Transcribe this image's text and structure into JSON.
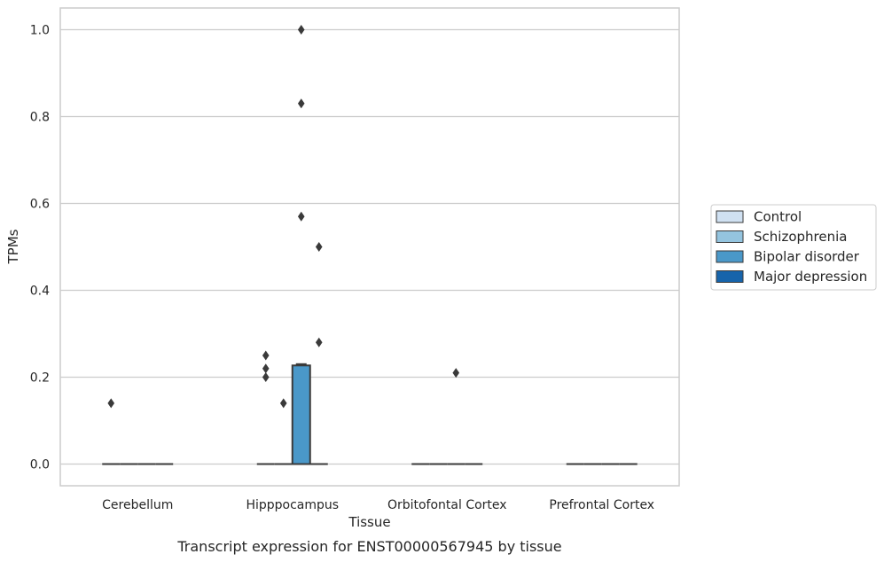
{
  "caption": "Transcript expression for ENST00000567945 by tissue",
  "colors": {
    "control": "#d0e1f2",
    "schizophrenia": "#94c4df",
    "bipolar": "#4a98c9",
    "depression": "#1764ab",
    "grid": "#cccccc",
    "edge": "#3a3a3a"
  },
  "chart_data": {
    "type": "box",
    "xlabel": "Tissue",
    "ylabel": "TPMs",
    "ylim": [
      -0.05,
      1.05
    ],
    "yticks": [
      0.0,
      0.2,
      0.4,
      0.6,
      0.8,
      1.0
    ],
    "grid": true,
    "legend_position": "right",
    "categories": [
      "Cerebellum",
      "Hipppocampus",
      "Orbitofontal Cortex",
      "Prefrontal Cortex"
    ],
    "series": [
      {
        "name": "Control",
        "color": "#d0e1f2",
        "boxes": [
          {
            "q1": 0,
            "median": 0,
            "q3": 0,
            "whisker_low": 0,
            "whisker_high": 0,
            "outliers": [
              0.14
            ]
          },
          {
            "q1": 0,
            "median": 0,
            "q3": 0,
            "whisker_low": 0,
            "whisker_high": 0,
            "outliers": [
              0.25,
              0.22,
              0.2
            ]
          },
          {
            "q1": 0,
            "median": 0,
            "q3": 0,
            "whisker_low": 0,
            "whisker_high": 0,
            "outliers": []
          },
          {
            "q1": 0,
            "median": 0,
            "q3": 0,
            "whisker_low": 0,
            "whisker_high": 0,
            "outliers": []
          }
        ]
      },
      {
        "name": "Schizophrenia",
        "color": "#94c4df",
        "boxes": [
          {
            "q1": 0,
            "median": 0,
            "q3": 0,
            "whisker_low": 0,
            "whisker_high": 0,
            "outliers": []
          },
          {
            "q1": 0,
            "median": 0,
            "q3": 0,
            "whisker_low": 0,
            "whisker_high": 0,
            "outliers": [
              0.14
            ]
          },
          {
            "q1": 0,
            "median": 0,
            "q3": 0,
            "whisker_low": 0,
            "whisker_high": 0,
            "outliers": []
          },
          {
            "q1": 0,
            "median": 0,
            "q3": 0,
            "whisker_low": 0,
            "whisker_high": 0,
            "outliers": []
          }
        ]
      },
      {
        "name": "Bipolar disorder",
        "color": "#4a98c9",
        "boxes": [
          {
            "q1": 0,
            "median": 0,
            "q3": 0,
            "whisker_low": 0,
            "whisker_high": 0,
            "outliers": []
          },
          {
            "q1": 0,
            "median": 0,
            "q3": 0.227,
            "whisker_low": 0,
            "whisker_high": 0.23,
            "outliers": [
              1.0,
              0.83,
              0.57
            ]
          },
          {
            "q1": 0,
            "median": 0,
            "q3": 0,
            "whisker_low": 0,
            "whisker_high": 0,
            "outliers": [
              0.21
            ]
          },
          {
            "q1": 0,
            "median": 0,
            "q3": 0,
            "whisker_low": 0,
            "whisker_high": 0,
            "outliers": []
          }
        ]
      },
      {
        "name": "Major depression",
        "color": "#1764ab",
        "boxes": [
          {
            "q1": 0,
            "median": 0,
            "q3": 0,
            "whisker_low": 0,
            "whisker_high": 0,
            "outliers": []
          },
          {
            "q1": 0,
            "median": 0,
            "q3": 0,
            "whisker_low": 0,
            "whisker_high": 0,
            "outliers": [
              0.5,
              0.28
            ]
          },
          {
            "q1": 0,
            "median": 0,
            "q3": 0,
            "whisker_low": 0,
            "whisker_high": 0,
            "outliers": []
          },
          {
            "q1": 0,
            "median": 0,
            "q3": 0,
            "whisker_low": 0,
            "whisker_high": 0,
            "outliers": []
          }
        ]
      }
    ]
  }
}
